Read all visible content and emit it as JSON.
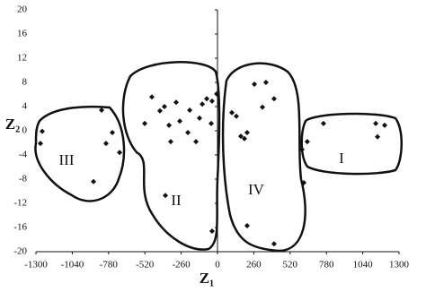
{
  "chart_data": {
    "type": "scatter",
    "x_label": "Z₁",
    "y_label": "Z₂",
    "color": "#111111",
    "xlim": [
      -1300,
      1300
    ],
    "xticks": [
      -1300,
      -1040,
      -780,
      -520,
      -260,
      0,
      260,
      520,
      780,
      1040,
      1300
    ],
    "ylim": [
      -20,
      20
    ],
    "yticks": [
      -20,
      -16,
      -12,
      -8,
      -4,
      0,
      4,
      8,
      12,
      16,
      20
    ],
    "x": [
      -1268,
      -1255,
      -830,
      -798,
      -753,
      -701,
      -888,
      -470,
      -521,
      -380,
      -412,
      -347,
      -335,
      -296,
      -212,
      -199,
      -154,
      -109,
      -77,
      -39,
      -6,
      -45,
      -129,
      -373,
      -39,
      -270,
      103,
      135,
      167,
      193,
      212,
      264,
      347,
      405,
      322,
      212,
      405,
      605,
      618,
      759,
      643,
      1133,
      1146,
      1197
    ],
    "y": [
      -2.1,
      -0.1,
      3.4,
      -2.1,
      -0.3,
      -3.6,
      -8.4,
      5.6,
      1.2,
      4,
      3.3,
      0.9,
      -1.8,
      4.7,
      -0.3,
      3.4,
      -1.8,
      4.4,
      5.3,
      4.9,
      6.1,
      1.2,
      2.1,
      -10.7,
      -16.6,
      1.6,
      3,
      2.4,
      -0.9,
      -1.3,
      -0.3,
      7.7,
      8,
      5.3,
      3.9,
      -15.7,
      -18.7,
      -3.1,
      -8.6,
      1.2,
      -1.8,
      1.2,
      -1,
      0.9
    ],
    "annotations": [
      "III",
      "II",
      "IV",
      "I"
    ]
  }
}
